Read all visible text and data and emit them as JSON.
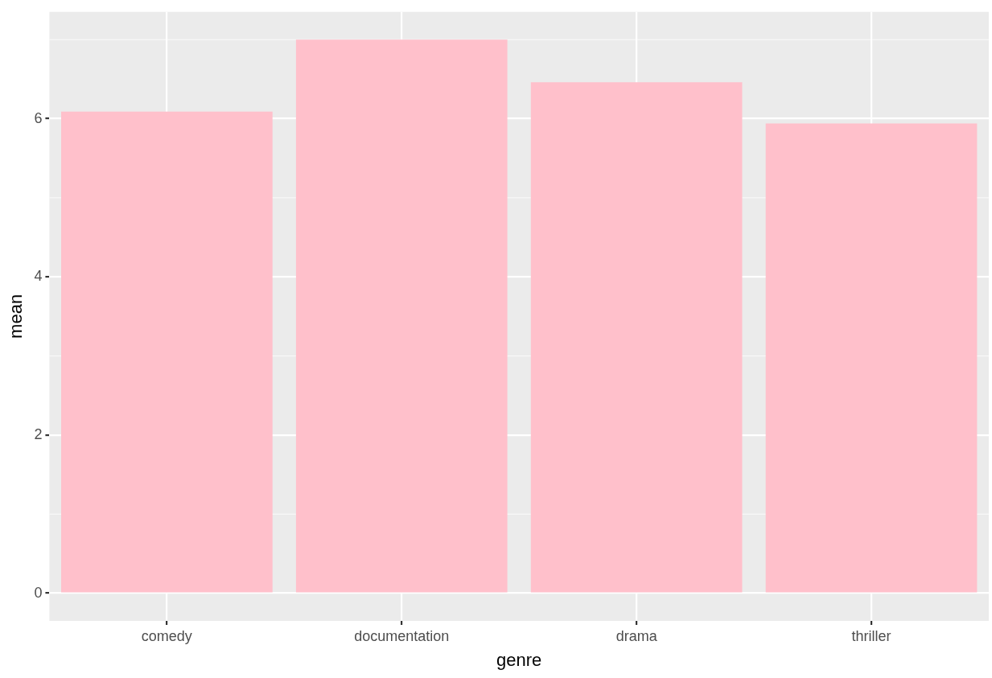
{
  "chart_data": {
    "type": "bar",
    "xlabel": "genre",
    "ylabel": "mean",
    "categories": [
      "comedy",
      "documentation",
      "drama",
      "thriller"
    ],
    "values": [
      6.09,
      7.0,
      6.46,
      5.94
    ],
    "color": "#ffc0cb",
    "ylim": [
      -0.35,
      7.35
    ],
    "yticks": [
      0,
      2,
      4,
      6
    ],
    "grid": true,
    "legend": false
  }
}
